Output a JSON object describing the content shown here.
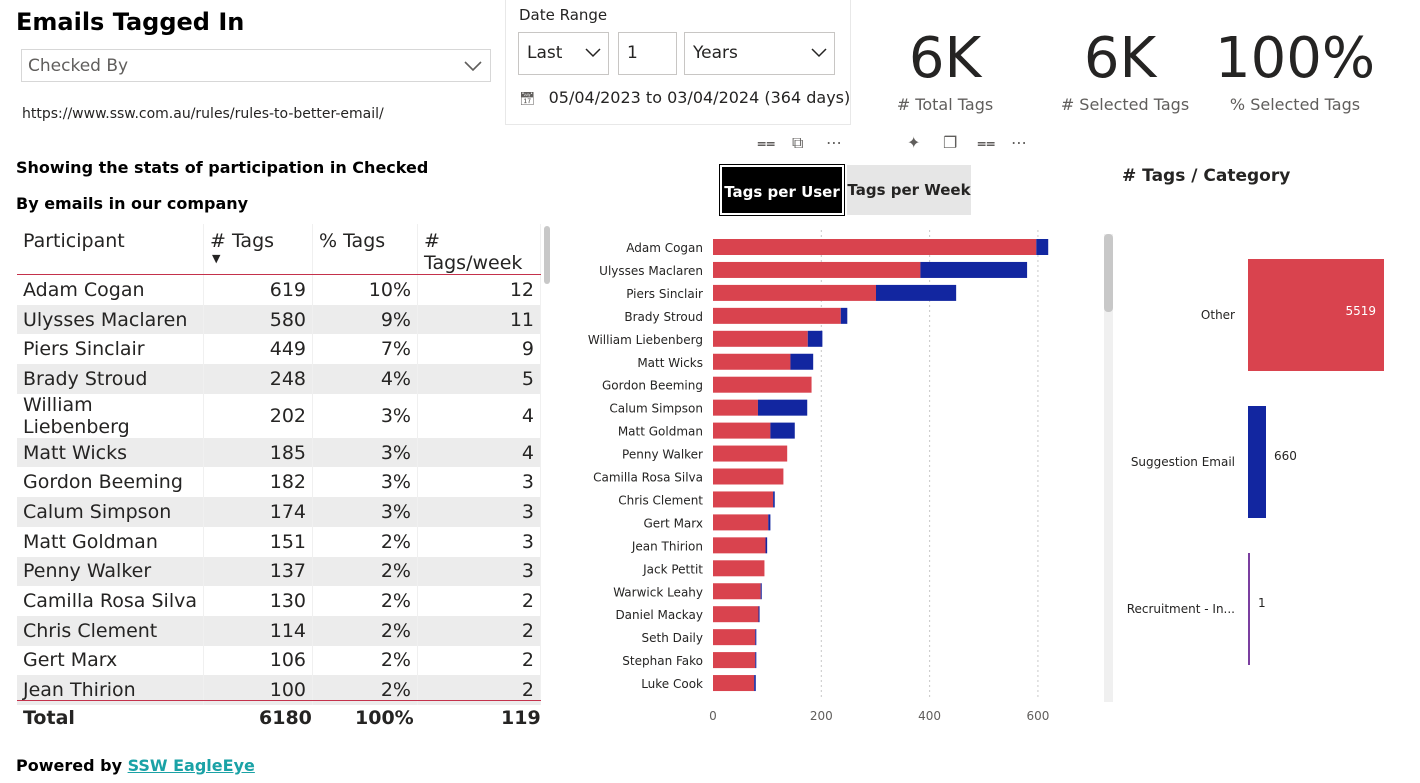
{
  "header": {
    "title": "Emails Tagged In",
    "dropdown_value": "Checked By",
    "url": "https://www.ssw.com.au/rules/rules-to-better-email/",
    "description": "Showing the stats of participation in Checked By emails in our company"
  },
  "date_range": {
    "label": "Date Range",
    "mode": "Last",
    "count": "1",
    "unit": "Years",
    "range_text": "05/04/2023 to 03/04/2024 (364 days)"
  },
  "kpis": [
    {
      "value": "6K",
      "label": "# Total Tags"
    },
    {
      "value": "6K",
      "label": "# Selected Tags"
    },
    {
      "value": "100%",
      "label": "% Selected Tags"
    }
  ],
  "table": {
    "columns": [
      "Participant",
      "# Tags",
      "% Tags",
      "# Tags/week"
    ],
    "rows": [
      [
        "Adam Cogan",
        "619",
        "10%",
        "12"
      ],
      [
        "Ulysses Maclaren",
        "580",
        "9%",
        "11"
      ],
      [
        "Piers Sinclair",
        "449",
        "7%",
        "9"
      ],
      [
        "Brady Stroud",
        "248",
        "4%",
        "5"
      ],
      [
        "William Liebenberg",
        "202",
        "3%",
        "4"
      ],
      [
        "Matt Wicks",
        "185",
        "3%",
        "4"
      ],
      [
        "Gordon Beeming",
        "182",
        "3%",
        "3"
      ],
      [
        "Calum Simpson",
        "174",
        "3%",
        "3"
      ],
      [
        "Matt Goldman",
        "151",
        "2%",
        "3"
      ],
      [
        "Penny Walker",
        "137",
        "2%",
        "3"
      ],
      [
        "Camilla Rosa Silva",
        "130",
        "2%",
        "2"
      ],
      [
        "Chris Clement",
        "114",
        "2%",
        "2"
      ],
      [
        "Gert Marx",
        "106",
        "2%",
        "2"
      ],
      [
        "Jean Thirion",
        "100",
        "2%",
        "2"
      ]
    ],
    "total": {
      "label": "Total",
      "tags": "6180",
      "pct": "100%",
      "week": "119"
    }
  },
  "footer": {
    "powered_by": "Powered by",
    "link_text": "SSW EagleEye"
  },
  "toggle": {
    "active": "Tags per User",
    "inactive": "Tags per Week"
  },
  "category_title": "# Tags / Category",
  "colors": {
    "red": "#d9434e",
    "blue": "#1226a0",
    "purple": "#7b3fa0",
    "accent_line": "#c4314b"
  },
  "chart_data": [
    {
      "type": "bar",
      "orientation": "horizontal",
      "stacked": true,
      "title": "Tags per User",
      "categories": [
        "Adam Cogan",
        "Ulysses Maclaren",
        "Piers Sinclair",
        "Brady Stroud",
        "William Liebenberg",
        "Matt Wicks",
        "Gordon Beeming",
        "Calum Simpson",
        "Matt Goldman",
        "Penny Walker",
        "Camilla Rosa Silva",
        "Chris Clement",
        "Gert Marx",
        "Jean Thirion",
        "Jack Pettit",
        "Warwick Leahy",
        "Daniel Mackay",
        "Seth Daily",
        "Stephan Fako",
        "Luke Cook"
      ],
      "series": [
        {
          "name": "Other",
          "color": "#d9434e",
          "values": [
            597,
            383,
            301,
            236,
            175,
            143,
            182,
            83,
            106,
            137,
            130,
            111,
            102,
            97,
            95,
            88,
            84,
            78,
            78,
            76
          ]
        },
        {
          "name": "Suggestion Email",
          "color": "#1226a0",
          "values": [
            22,
            197,
            148,
            12,
            27,
            42,
            0,
            91,
            45,
            0,
            0,
            3,
            4,
            3,
            0,
            2,
            2,
            2,
            2,
            3
          ]
        }
      ],
      "xlim": [
        0,
        650
      ],
      "xticks": [
        0,
        200,
        400,
        600
      ]
    },
    {
      "type": "bar",
      "orientation": "vertical-funnel",
      "title": "# Tags / Category",
      "categories": [
        "Other",
        "Suggestion Email",
        "Recruitment - In..."
      ],
      "values": [
        5519,
        660,
        1
      ],
      "labels": [
        "5519",
        "660",
        "1"
      ]
    }
  ]
}
